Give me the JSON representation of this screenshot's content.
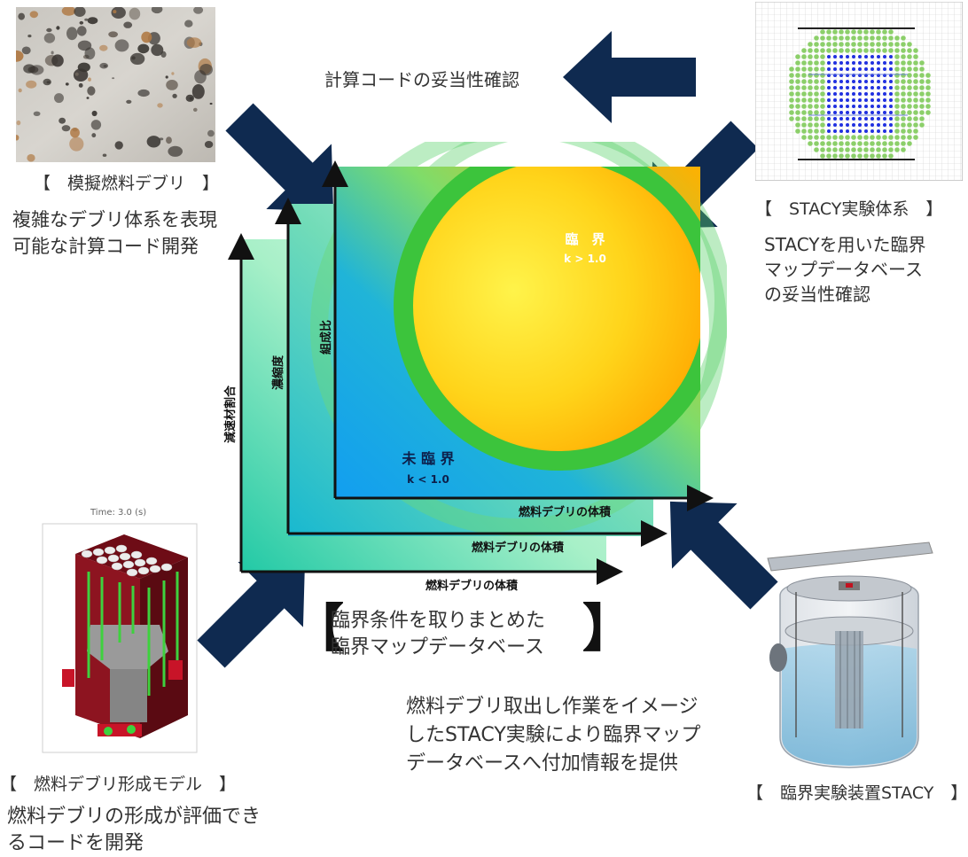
{
  "top_caption": "計算コードの妥当性確認",
  "debris": {
    "title": "【　模擬燃料デブリ　】",
    "desc": [
      "複雑なデブリ体系を表現",
      "可能な計算コード開発"
    ]
  },
  "stacy_system": {
    "title": "【　STACY実験体系　】",
    "desc": [
      "STACYを用いた臨界",
      "マップデータベース",
      "の妥当性確認"
    ]
  },
  "formation_model": {
    "time_label": "Time: 3.0 (s)",
    "title": "【　燃料デブリ形成モデル　】",
    "desc": [
      "燃料デブリの形成が評価でき",
      "るコードを開発"
    ]
  },
  "stacy_facility": {
    "title": "【　臨界実験装置STACY　】"
  },
  "experiment_caption": [
    "燃料デブリ取出し作業をイメージ",
    "したSTACY実験により臨界マップ",
    "データベースへ付加情報を提供"
  ],
  "map": {
    "bracket_left": "【",
    "bracket_right": "】",
    "title": [
      "臨界条件を取りまとめた",
      "臨界マップデータベース"
    ],
    "critical_label": "臨　界",
    "critical_cond": "k > 1.0",
    "subcritical_label": "未 臨 界",
    "subcritical_cond": "k < 1.0",
    "layers": [
      {
        "y_label": "減速材割合",
        "x_label": "燃料デブリの体積"
      },
      {
        "y_label": "濃縮度",
        "x_label": "燃料デブリの体積"
      },
      {
        "y_label": "組成比",
        "x_label": "燃料デブリの体積"
      }
    ]
  },
  "colors": {
    "arrow": "#0f2a50",
    "ring": "#3cc43c",
    "subcritical": "#1aa0f0",
    "critical": "#ffb300"
  }
}
